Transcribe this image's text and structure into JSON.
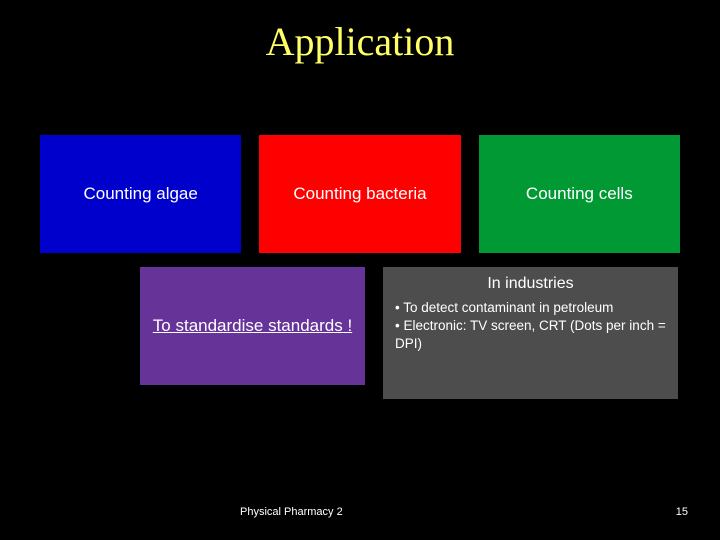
{
  "title": "Application",
  "row1": {
    "boxes": [
      {
        "label": "Counting algae",
        "bg": "#0000cc"
      },
      {
        "label": "Counting bacteria",
        "bg": "#ff0000"
      },
      {
        "label": "Counting cells",
        "bg": "#009933"
      }
    ]
  },
  "row2": {
    "purple": {
      "label": "To standardise standards !",
      "bg": "#663399"
    },
    "gray": {
      "title": "In industries",
      "bullet1": "• To detect contaminant in petroleum",
      "bullet2": "• Electronic: TV screen, CRT (Dots per inch = DPI)",
      "bg": "#4d4d4d"
    }
  },
  "footer": {
    "course": "Physical Pharmacy 2",
    "page": "15"
  },
  "style": {
    "background": "#000000",
    "title_color": "#ffff66",
    "title_fontsize": 40,
    "title_font": "Times New Roman, serif",
    "box_text_color": "#ffffff",
    "box_fontsize": 17,
    "gray_fontsize": 14,
    "footer_fontsize": 11
  }
}
